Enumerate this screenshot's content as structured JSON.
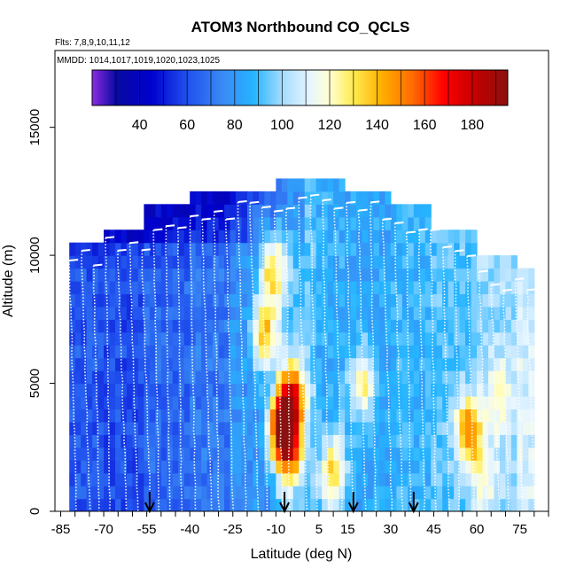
{
  "chart_data": {
    "type": "heatmap",
    "title": "ATOM3 Northbound CO_QCLS",
    "flights_note": "Flts: 7,8,9,10,11,12",
    "dates_note": "MMDD: 1014,1017,1019,1020,1023,1025",
    "xlabel": "Latitude (deg N)",
    "ylabel": "Altitude (m)",
    "xlim": [
      -87,
      85
    ],
    "ylim": [
      0,
      18000
    ],
    "x_ticks": [
      -85,
      -70,
      -55,
      -40,
      -25,
      -10,
      5,
      15,
      30,
      45,
      60,
      75
    ],
    "y_ticks": [
      0,
      5000,
      10000,
      15000
    ],
    "grid": false,
    "colorbar": {
      "label_ticks": [
        40,
        60,
        80,
        100,
        120,
        140,
        160,
        180
      ],
      "range": [
        20,
        195
      ],
      "stops": [
        {
          "v": 20,
          "c": "#8a2be2"
        },
        {
          "v": 30,
          "c": "#0a0aa0"
        },
        {
          "v": 45,
          "c": "#0000cd"
        },
        {
          "v": 60,
          "c": "#2050ee"
        },
        {
          "v": 75,
          "c": "#3a8af5"
        },
        {
          "v": 88,
          "c": "#25b5ff"
        },
        {
          "v": 100,
          "c": "#a5dcff"
        },
        {
          "v": 112,
          "c": "#e8f6ff"
        },
        {
          "v": 120,
          "c": "#ffffd0"
        },
        {
          "v": 130,
          "c": "#ffeb50"
        },
        {
          "v": 142,
          "c": "#ffb000"
        },
        {
          "v": 155,
          "c": "#ff6a00"
        },
        {
          "v": 168,
          "c": "#ff0000"
        },
        {
          "v": 182,
          "c": "#c00000"
        },
        {
          "v": 195,
          "c": "#8b1010"
        }
      ]
    },
    "latitude_bands": [
      {
        "from": -82,
        "to": -70,
        "top": 10500,
        "base_co": 62
      },
      {
        "from": -70,
        "to": -55,
        "top": 11000,
        "base_co": 60
      },
      {
        "from": -55,
        "to": -40,
        "top": 11800,
        "base_co": 66
      },
      {
        "from": -40,
        "to": -25,
        "top": 12200,
        "base_co": 70
      },
      {
        "from": -25,
        "to": -10,
        "top": 12500,
        "base_co": 78
      },
      {
        "from": -10,
        "to": 5,
        "top": 12800,
        "base_co": 92
      },
      {
        "from": 5,
        "to": 15,
        "top": 12800,
        "base_co": 86
      },
      {
        "from": 15,
        "to": 30,
        "top": 12500,
        "base_co": 84
      },
      {
        "from": 30,
        "to": 45,
        "top": 12000,
        "base_co": 88
      },
      {
        "from": 45,
        "to": 60,
        "top": 11000,
        "base_co": 92
      },
      {
        "from": 60,
        "to": 75,
        "top": 9800,
        "base_co": 100
      },
      {
        "from": 75,
        "to": 80,
        "top": 9500,
        "base_co": 108
      }
    ],
    "hotspots": [
      {
        "lat": -8,
        "alt": 3300,
        "value": 175
      },
      {
        "lat": -4,
        "alt": 4500,
        "value": 160
      },
      {
        "lat": -5,
        "alt": 2500,
        "value": 150
      },
      {
        "lat": -14,
        "alt": 7000,
        "value": 140
      },
      {
        "lat": -11,
        "alt": 9500,
        "value": 135
      },
      {
        "lat": 10,
        "alt": 1500,
        "value": 138
      },
      {
        "lat": 20,
        "alt": 5000,
        "value": 125
      },
      {
        "lat": 57,
        "alt": 3200,
        "value": 150
      },
      {
        "lat": 68,
        "alt": 4500,
        "value": 125
      },
      {
        "lat": 62,
        "alt": 1500,
        "value": 122
      }
    ],
    "arrows_at_latitude": [
      -54,
      -7,
      17,
      38
    ]
  }
}
